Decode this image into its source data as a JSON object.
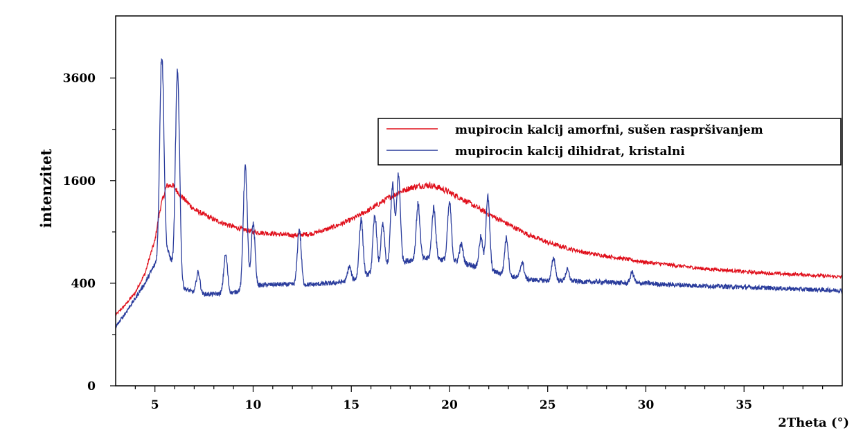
{
  "chart_data": {
    "type": "line",
    "title": "",
    "xlabel": "2Theta (°)",
    "ylabel": "intenzitet",
    "xlim": [
      3,
      40
    ],
    "yscale": "sqrt",
    "ylim": [
      0,
      5200
    ],
    "x_ticks": [
      5,
      10,
      15,
      20,
      25,
      30,
      35
    ],
    "y_ticks": [
      0,
      400,
      1600,
      3600
    ],
    "legend_position": "right",
    "grid": false,
    "series": [
      {
        "name": "mupirocin kalcij amorfni, sušen raspršivanjem",
        "color": "#e0101c",
        "x": [
          3.0,
          3.5,
          4.0,
          4.5,
          5.0,
          5.3,
          5.6,
          5.9,
          6.3,
          7.0,
          8.0,
          9.0,
          10.0,
          11.0,
          12.0,
          13.0,
          14.0,
          15.0,
          16.0,
          17.0,
          17.5,
          18.0,
          18.5,
          19.0,
          19.5,
          20.0,
          20.5,
          21.0,
          22.0,
          23.0,
          24.0,
          25.0,
          26.0,
          27.0,
          28.0,
          29.0,
          30.0,
          31.0,
          32.0,
          33.0,
          34.0,
          35.0,
          36.0,
          37.0,
          38.0,
          39.0,
          40.0
        ],
        "values": [
          190,
          250,
          330,
          480,
          800,
          1230,
          1520,
          1530,
          1380,
          1180,
          1050,
          960,
          900,
          880,
          860,
          880,
          950,
          1050,
          1190,
          1360,
          1430,
          1490,
          1520,
          1530,
          1490,
          1420,
          1350,
          1270,
          1120,
          990,
          870,
          780,
          720,
          670,
          640,
          610,
          580,
          560,
          540,
          520,
          510,
          495,
          485,
          475,
          470,
          460,
          450
        ]
      },
      {
        "name": "mupirocin kalcij dihidrat, kristalni",
        "color": "#2a3c9c",
        "baseline": {
          "x": [
            3.0,
            3.5,
            4.0,
            4.5,
            5.0,
            5.5,
            6.0,
            6.5,
            7.0,
            7.5,
            8.0,
            9.0,
            10.0,
            11.0,
            12.0,
            13.0,
            14.0,
            15.0,
            16.0,
            17.0,
            18.0,
            19.0,
            20.0,
            21.0,
            22.0,
            23.0,
            24.0,
            25.0,
            26.0,
            27.0,
            28.0,
            29.0,
            30.0,
            31.0,
            32.0,
            33.0,
            34.0,
            35.0,
            36.0,
            37.0,
            38.0,
            39.0,
            40.0
          ],
          "values": [
            130,
            200,
            290,
            400,
            560,
            760,
            520,
            360,
            330,
            320,
            320,
            330,
            380,
            390,
            390,
            390,
            400,
            420,
            480,
            560,
            600,
            620,
            600,
            560,
            510,
            460,
            430,
            420,
            420,
            410,
            410,
            400,
            400,
            390,
            385,
            380,
            375,
            370,
            365,
            360,
            355,
            350,
            345
          ]
        },
        "peaks": [
          {
            "x": 5.35,
            "height": 4200
          },
          {
            "x": 6.15,
            "height": 3700
          },
          {
            "x": 7.2,
            "height": 490
          },
          {
            "x": 8.6,
            "height": 650
          },
          {
            "x": 9.6,
            "height": 1800
          },
          {
            "x": 10.0,
            "height": 1000
          },
          {
            "x": 12.35,
            "height": 930
          },
          {
            "x": 14.9,
            "height": 540
          },
          {
            "x": 15.5,
            "height": 1050
          },
          {
            "x": 16.2,
            "height": 1100
          },
          {
            "x": 16.6,
            "height": 980
          },
          {
            "x": 17.1,
            "height": 1530
          },
          {
            "x": 17.4,
            "height": 1680
          },
          {
            "x": 18.4,
            "height": 1250
          },
          {
            "x": 19.2,
            "height": 1200
          },
          {
            "x": 20.0,
            "height": 1270
          },
          {
            "x": 20.6,
            "height": 760
          },
          {
            "x": 21.6,
            "height": 840
          },
          {
            "x": 21.95,
            "height": 1350
          },
          {
            "x": 22.9,
            "height": 830
          },
          {
            "x": 23.7,
            "height": 580
          },
          {
            "x": 25.3,
            "height": 620
          },
          {
            "x": 26.0,
            "height": 510
          },
          {
            "x": 29.3,
            "height": 490
          }
        ]
      }
    ]
  }
}
